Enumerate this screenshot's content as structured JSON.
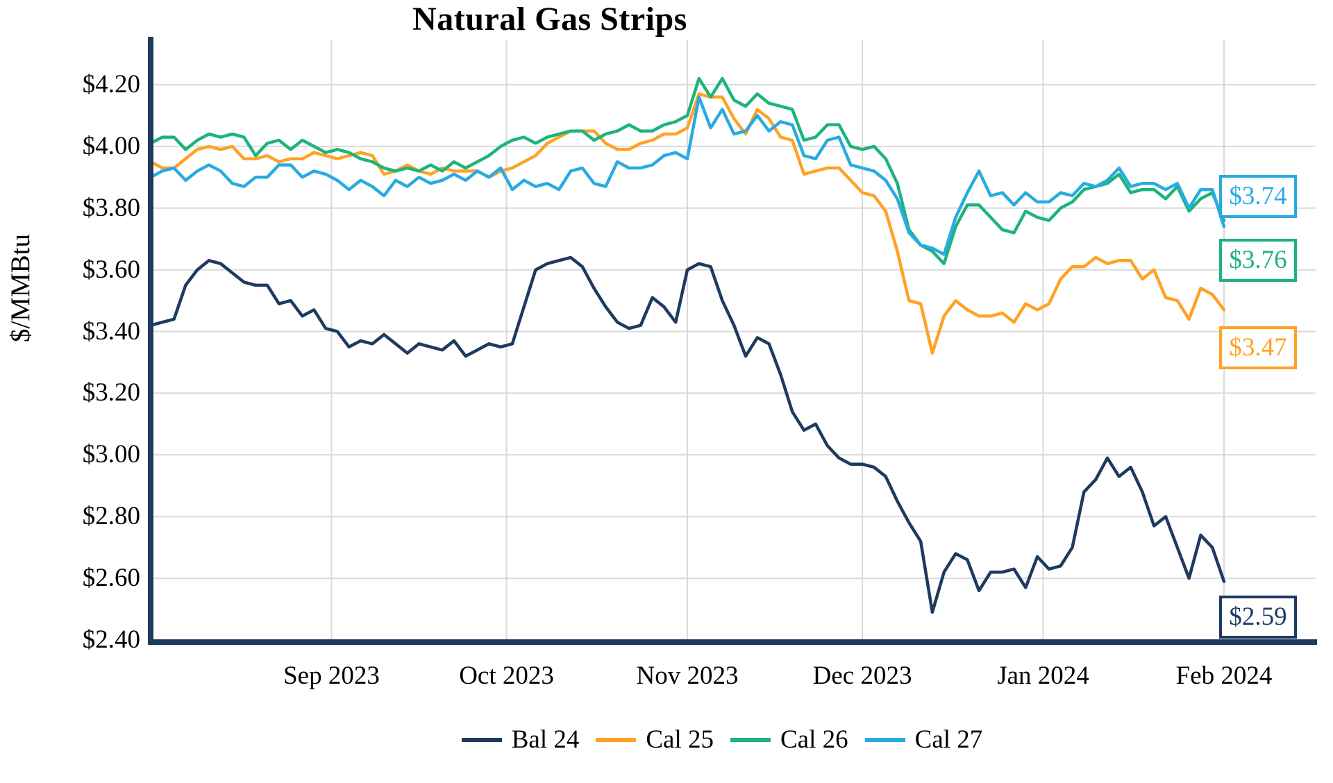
{
  "chart_data": {
    "type": "line",
    "title": "Natural Gas Strips",
    "ylabel": "$/MMBtu",
    "ylim": [
      2.4,
      4.34
    ],
    "grid": true,
    "legend_position": "bottom",
    "x_start": "2023-08-01",
    "x_end": "2024-02-01",
    "x_sample_days": 2,
    "x_ticks": [
      {
        "label": "Sep 2023",
        "day": 31
      },
      {
        "label": "Oct 2023",
        "day": 61
      },
      {
        "label": "Nov 2023",
        "day": 92
      },
      {
        "label": "Dec 2023",
        "day": 122
      },
      {
        "label": "Jan 2024",
        "day": 153
      },
      {
        "label": "Feb 2024",
        "day": 184
      }
    ],
    "y_ticks": [
      {
        "label": "$4.20",
        "value": 4.2
      },
      {
        "label": "$4.00",
        "value": 4.0
      },
      {
        "label": "$3.80",
        "value": 3.8
      },
      {
        "label": "$3.60",
        "value": 3.6
      },
      {
        "label": "$3.40",
        "value": 3.4
      },
      {
        "label": "$3.20",
        "value": 3.2
      },
      {
        "label": "$3.00",
        "value": 3.0
      },
      {
        "label": "$2.80",
        "value": 2.8
      },
      {
        "label": "$2.60",
        "value": 2.6
      },
      {
        "label": "$2.40",
        "value": 2.4
      }
    ],
    "series": [
      {
        "name": "Bal 24",
        "color": "#1e3a5f",
        "end_label": "$2.59",
        "values": [
          3.42,
          3.43,
          3.44,
          3.55,
          3.6,
          3.63,
          3.62,
          3.59,
          3.56,
          3.55,
          3.55,
          3.49,
          3.5,
          3.45,
          3.47,
          3.41,
          3.4,
          3.35,
          3.37,
          3.36,
          3.39,
          3.36,
          3.33,
          3.36,
          3.35,
          3.34,
          3.37,
          3.32,
          3.34,
          3.36,
          3.35,
          3.36,
          3.48,
          3.6,
          3.62,
          3.63,
          3.64,
          3.61,
          3.54,
          3.48,
          3.43,
          3.41,
          3.42,
          3.51,
          3.48,
          3.43,
          3.6,
          3.62,
          3.61,
          3.5,
          3.42,
          3.32,
          3.38,
          3.36,
          3.26,
          3.14,
          3.08,
          3.1,
          3.03,
          2.99,
          2.97,
          2.97,
          2.96,
          2.93,
          2.85,
          2.78,
          2.72,
          2.49,
          2.62,
          2.68,
          2.66,
          2.56,
          2.62,
          2.62,
          2.63,
          2.57,
          2.67,
          2.63,
          2.64,
          2.7,
          2.88,
          2.92,
          2.99,
          2.93,
          2.96,
          2.88,
          2.77,
          2.8,
          2.7,
          2.6,
          2.74,
          2.7,
          2.59
        ]
      },
      {
        "name": "Cal 25",
        "color": "#ffa226",
        "end_label": "$3.47",
        "values": [
          3.95,
          3.93,
          3.93,
          3.96,
          3.99,
          4.0,
          3.99,
          4.0,
          3.96,
          3.96,
          3.97,
          3.95,
          3.96,
          3.96,
          3.98,
          3.97,
          3.96,
          3.97,
          3.98,
          3.97,
          3.91,
          3.92,
          3.94,
          3.92,
          3.91,
          3.93,
          3.92,
          3.92,
          3.92,
          3.9,
          3.92,
          3.93,
          3.95,
          3.97,
          4.01,
          4.03,
          4.05,
          4.05,
          4.05,
          4.01,
          3.99,
          3.99,
          4.01,
          4.02,
          4.04,
          4.04,
          4.06,
          4.17,
          4.16,
          4.16,
          4.09,
          4.04,
          4.12,
          4.09,
          4.03,
          4.02,
          3.91,
          3.92,
          3.93,
          3.93,
          3.89,
          3.85,
          3.84,
          3.79,
          3.66,
          3.5,
          3.49,
          3.33,
          3.45,
          3.5,
          3.47,
          3.45,
          3.45,
          3.46,
          3.43,
          3.49,
          3.47,
          3.49,
          3.57,
          3.61,
          3.61,
          3.64,
          3.62,
          3.63,
          3.63,
          3.57,
          3.6,
          3.51,
          3.5,
          3.44,
          3.54,
          3.52,
          3.47
        ]
      },
      {
        "name": "Cal 26",
        "color": "#1db47b",
        "end_label": "$3.76",
        "values": [
          4.01,
          4.03,
          4.03,
          3.99,
          4.02,
          4.04,
          4.03,
          4.04,
          4.03,
          3.97,
          4.01,
          4.02,
          3.99,
          4.02,
          4.0,
          3.98,
          3.99,
          3.98,
          3.96,
          3.95,
          3.93,
          3.92,
          3.93,
          3.92,
          3.94,
          3.92,
          3.95,
          3.93,
          3.95,
          3.97,
          4.0,
          4.02,
          4.03,
          4.01,
          4.03,
          4.04,
          4.05,
          4.05,
          4.02,
          4.04,
          4.05,
          4.07,
          4.05,
          4.05,
          4.07,
          4.08,
          4.1,
          4.22,
          4.16,
          4.22,
          4.15,
          4.13,
          4.17,
          4.14,
          4.13,
          4.12,
          4.02,
          4.03,
          4.07,
          4.07,
          4.0,
          3.99,
          4.0,
          3.96,
          3.88,
          3.73,
          3.68,
          3.66,
          3.62,
          3.74,
          3.81,
          3.81,
          3.77,
          3.73,
          3.72,
          3.79,
          3.77,
          3.76,
          3.8,
          3.82,
          3.86,
          3.87,
          3.88,
          3.91,
          3.85,
          3.86,
          3.86,
          3.83,
          3.87,
          3.79,
          3.83,
          3.85,
          3.76
        ]
      },
      {
        "name": "Cal 27",
        "color": "#29abe2",
        "end_label": "$3.74",
        "values": [
          3.9,
          3.92,
          3.93,
          3.89,
          3.92,
          3.94,
          3.92,
          3.88,
          3.87,
          3.9,
          3.9,
          3.94,
          3.94,
          3.9,
          3.92,
          3.91,
          3.89,
          3.86,
          3.89,
          3.87,
          3.84,
          3.89,
          3.87,
          3.9,
          3.88,
          3.89,
          3.91,
          3.89,
          3.92,
          3.9,
          3.93,
          3.86,
          3.89,
          3.87,
          3.88,
          3.86,
          3.92,
          3.93,
          3.88,
          3.87,
          3.95,
          3.93,
          3.93,
          3.94,
          3.97,
          3.98,
          3.96,
          4.16,
          4.06,
          4.12,
          4.04,
          4.05,
          4.1,
          4.05,
          4.08,
          4.07,
          3.97,
          3.96,
          4.02,
          4.03,
          3.94,
          3.93,
          3.92,
          3.89,
          3.83,
          3.72,
          3.68,
          3.67,
          3.65,
          3.77,
          3.85,
          3.92,
          3.84,
          3.85,
          3.81,
          3.85,
          3.82,
          3.82,
          3.85,
          3.84,
          3.88,
          3.87,
          3.89,
          3.93,
          3.87,
          3.88,
          3.88,
          3.86,
          3.88,
          3.8,
          3.86,
          3.86,
          3.74
        ]
      }
    ],
    "styles": {
      "grid_color": "#d9d9d9",
      "axis_color": "#1e3a5f",
      "background": "#ffffff"
    }
  }
}
